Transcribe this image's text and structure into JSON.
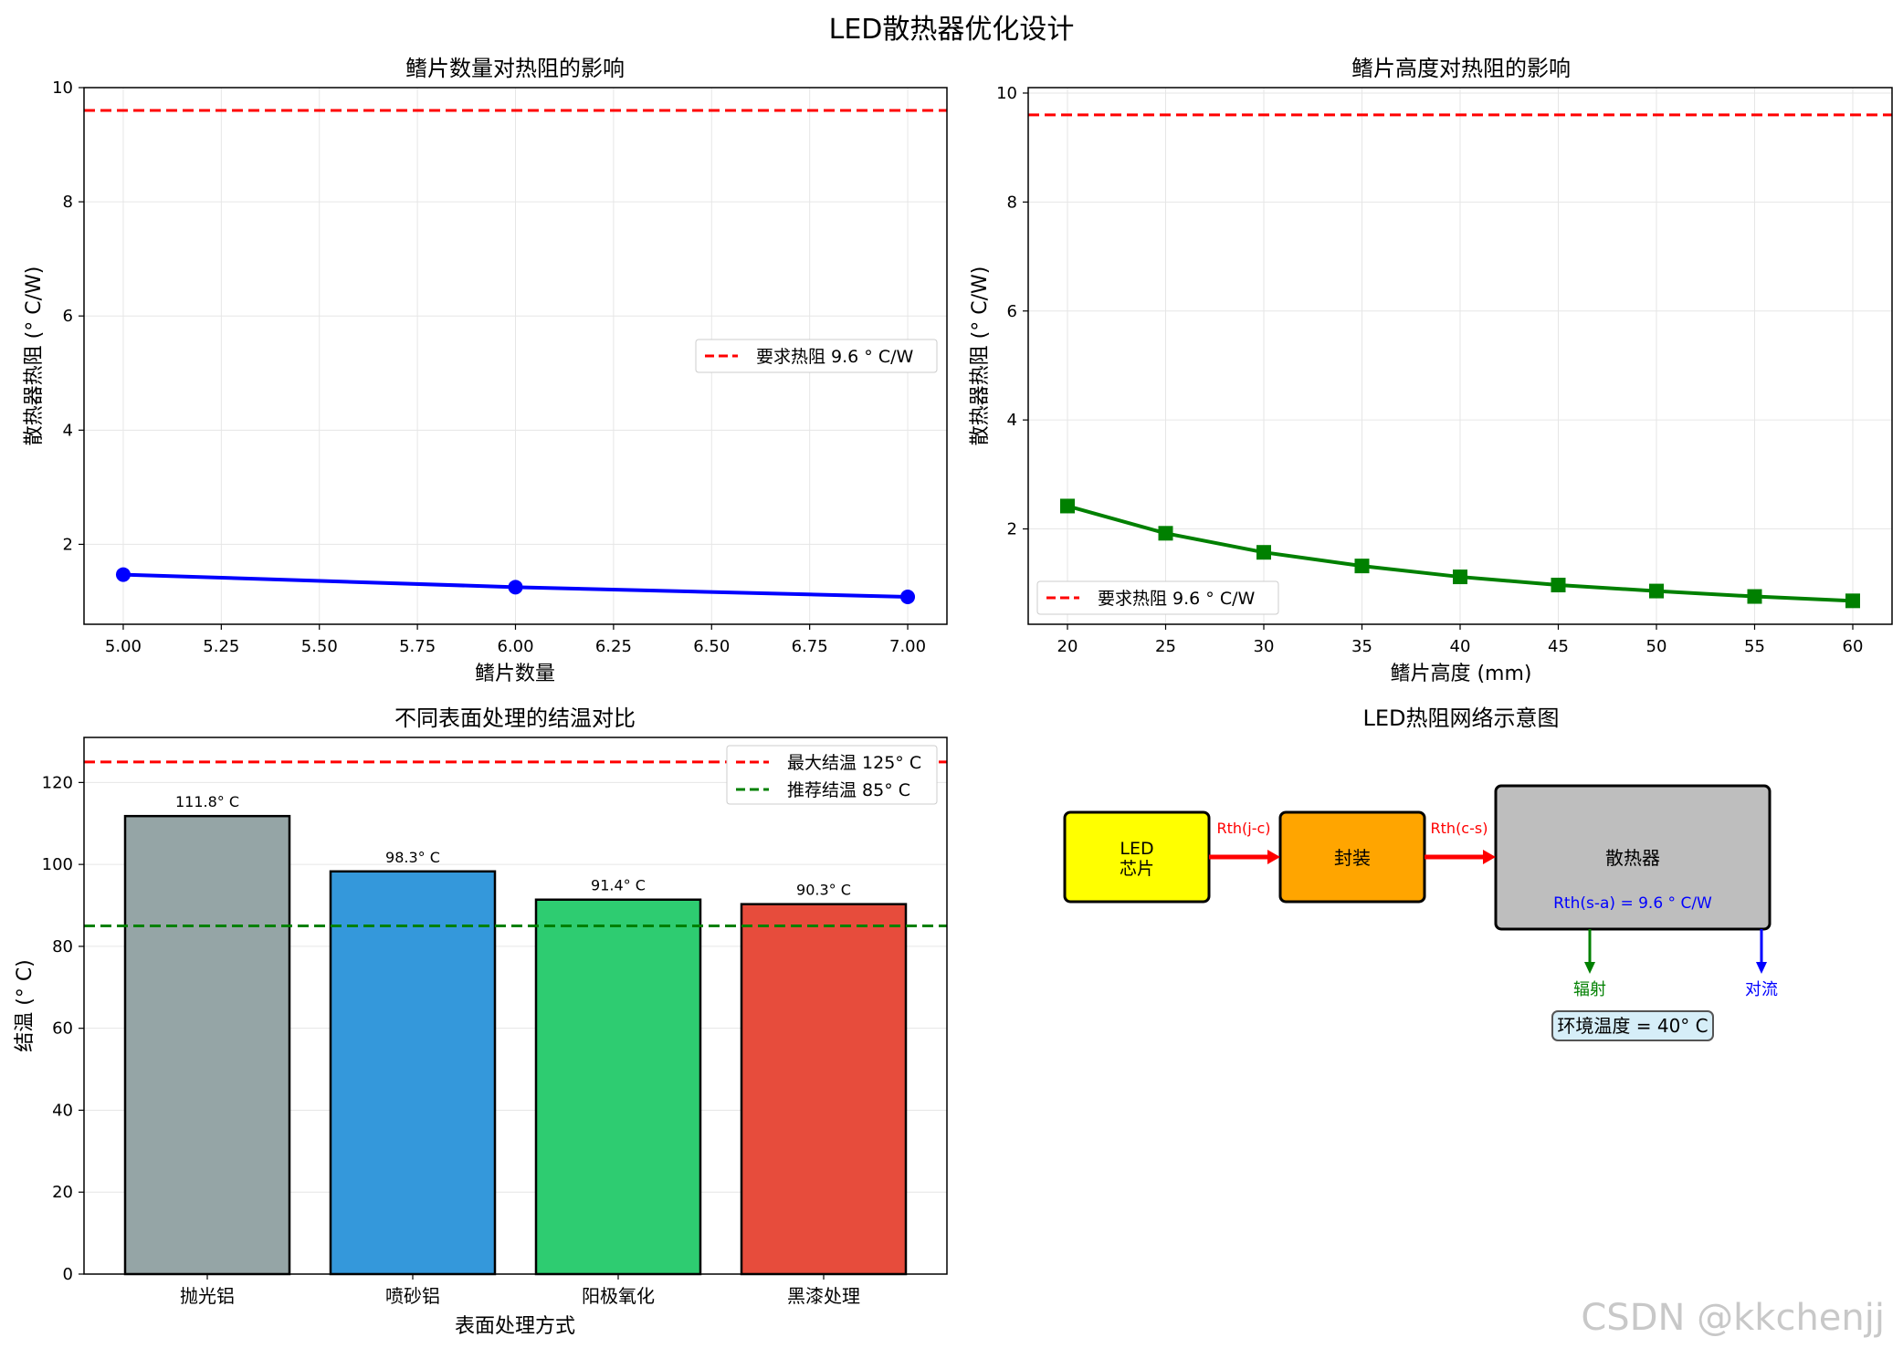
{
  "figure": {
    "title": "LED散热器优化设计",
    "watermark": "CSDN @kkchenjj"
  },
  "chart_data": [
    {
      "type": "line",
      "title": "鳍片数量对热阻的影响",
      "xlabel": "鳍片数量",
      "ylabel": "散热器热阻 (° C/W)",
      "xlim": [
        4.9,
        7.1
      ],
      "ylim": [
        0.6,
        10
      ],
      "xticks": [
        "5.00",
        "5.25",
        "5.50",
        "5.75",
        "6.00",
        "6.25",
        "6.50",
        "6.75",
        "7.00"
      ],
      "yticks": [
        "2",
        "4",
        "6",
        "8",
        "10"
      ],
      "grid": true,
      "legend": "center-right",
      "series": [
        {
          "x": [
            5,
            6,
            7
          ],
          "y": [
            1.47,
            1.25,
            1.08
          ],
          "color": "#0000ff",
          "marker": "circle"
        }
      ],
      "hlines": [
        {
          "name": "要求热阻 9.6 ° C/W",
          "y": 9.6,
          "color": "#ff0000",
          "style": "dashed"
        }
      ]
    },
    {
      "type": "line",
      "title": "鳍片高度对热阻的影响",
      "xlabel": "鳍片高度 (mm)",
      "ylabel": "散热器热阻 (° C/W)",
      "xlim": [
        18,
        62
      ],
      "ylim": [
        0.25,
        10.1
      ],
      "xticks": [
        "20",
        "25",
        "30",
        "35",
        "40",
        "45",
        "50",
        "55",
        "60"
      ],
      "yticks": [
        "2",
        "4",
        "6",
        "8",
        "10"
      ],
      "grid": true,
      "legend": "lower-left",
      "series": [
        {
          "x": [
            20,
            25,
            30,
            35,
            40,
            45,
            50,
            55,
            60
          ],
          "y": [
            2.42,
            1.92,
            1.57,
            1.32,
            1.12,
            0.97,
            0.86,
            0.76,
            0.68
          ],
          "color": "#008000",
          "marker": "square"
        }
      ],
      "hlines": [
        {
          "name": "要求热阻 9.6 ° C/W",
          "y": 9.6,
          "color": "#ff0000",
          "style": "dashed"
        }
      ]
    },
    {
      "type": "bar",
      "title": "不同表面处理的结温对比",
      "xlabel": "表面处理方式",
      "ylabel": "结温 (° C)",
      "ylim": [
        0,
        131
      ],
      "yticks": [
        "0",
        "20",
        "40",
        "60",
        "80",
        "100",
        "120"
      ],
      "grid": true,
      "legend": "top-right",
      "categories": [
        "抛光铝",
        "喷砂铝",
        "阳极氧化",
        "黑漆处理"
      ],
      "values": [
        111.8,
        98.3,
        91.4,
        90.3
      ],
      "labels": [
        "111.8° C",
        "98.3° C",
        "91.4° C",
        "90.3° C"
      ],
      "colors": [
        "#95a5a6",
        "#3498db",
        "#2ecc71",
        "#e74c3c"
      ],
      "hlines": [
        {
          "name": "最大结温 125° C",
          "y": 125,
          "color": "#ff0000",
          "style": "dashed"
        },
        {
          "name": "推荐结温 85° C",
          "y": 85,
          "color": "#008000",
          "style": "dashed"
        }
      ]
    }
  ],
  "diagram": {
    "title": "LED热阻网络示意图",
    "chip_line1": "LED",
    "chip_line2": "芯片",
    "chip_color": "#ffff00",
    "package": "封装",
    "package_color": "#ffa500",
    "heatsink": "散热器",
    "heatsink_color": "#bebebe",
    "rth_jc": "Rth(j-c)",
    "rth_cs": "Rth(c-s)",
    "rth_sa": "Rth(s-a) = 9.6 ° C/W",
    "radiation": "辐射",
    "convection": "对流",
    "ambient": "环境温度 = 40° C",
    "ambient_color": "#d6eef8"
  }
}
